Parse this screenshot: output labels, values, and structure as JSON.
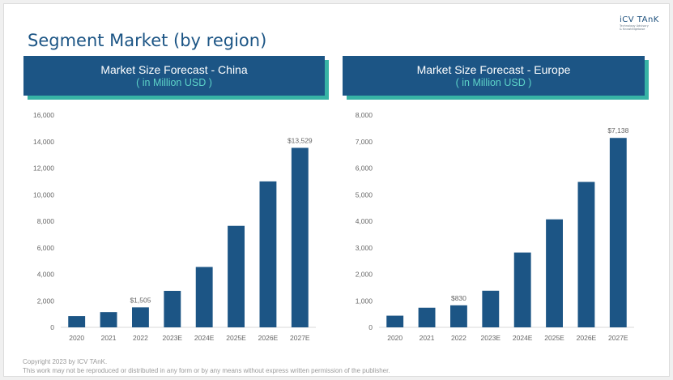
{
  "slide": {
    "title": "Segment Market (by region)"
  },
  "logo": {
    "name": "iCV TAnK",
    "tagline_1": "Technology Advisory",
    "tagline_2": "& Knowledgebase"
  },
  "footer": {
    "copyright": "Copyright  2023 by ICV TAnK.",
    "disclaimer": "This work may not be reproduced or distributed in any form or by any means without express written permission of the publisher."
  },
  "colors": {
    "bar": "#1c5585",
    "header_bg": "#1c5585",
    "header_shadow": "#37b3a5",
    "subtitle": "#5dd3c8",
    "axis_text": "#666666",
    "title": "#1c5585"
  },
  "chart_data": [
    {
      "type": "bar",
      "title": "Market Size Forecast - China",
      "subtitle": "( in Million USD )",
      "categories": [
        "2020",
        "2021",
        "2022",
        "2023E",
        "2024E",
        "2025E",
        "2026E",
        "2027E"
      ],
      "values": [
        850,
        1150,
        1505,
        2750,
        4550,
        7650,
        11000,
        13529
      ],
      "data_labels": [
        {
          "category": "2022",
          "text": "$1,505"
        },
        {
          "category": "2027E",
          "text": "$13,529"
        }
      ],
      "y_ticks": [
        "0",
        "2,000",
        "4,000",
        "6,000",
        "8,000",
        "10,000",
        "12,000",
        "14,000",
        "16,000"
      ],
      "ylim": [
        0,
        16000
      ],
      "grid": false,
      "legend": "none"
    },
    {
      "type": "bar",
      "title": "Market Size Forecast - Europe",
      "subtitle": "( in Million USD )",
      "categories": [
        "2020",
        "2021",
        "2022",
        "2023E",
        "2024E",
        "2025E",
        "2026E",
        "2027E"
      ],
      "values": [
        440,
        740,
        830,
        1380,
        2820,
        4070,
        5480,
        7138
      ],
      "data_labels": [
        {
          "category": "2022",
          "text": "$830"
        },
        {
          "category": "2027E",
          "text": "$7,138"
        }
      ],
      "y_ticks": [
        "0",
        "1,000",
        "2,000",
        "3,000",
        "4,000",
        "5,000",
        "6,000",
        "7,000",
        "8,000"
      ],
      "ylim": [
        0,
        8000
      ],
      "grid": false,
      "legend": "none"
    }
  ]
}
